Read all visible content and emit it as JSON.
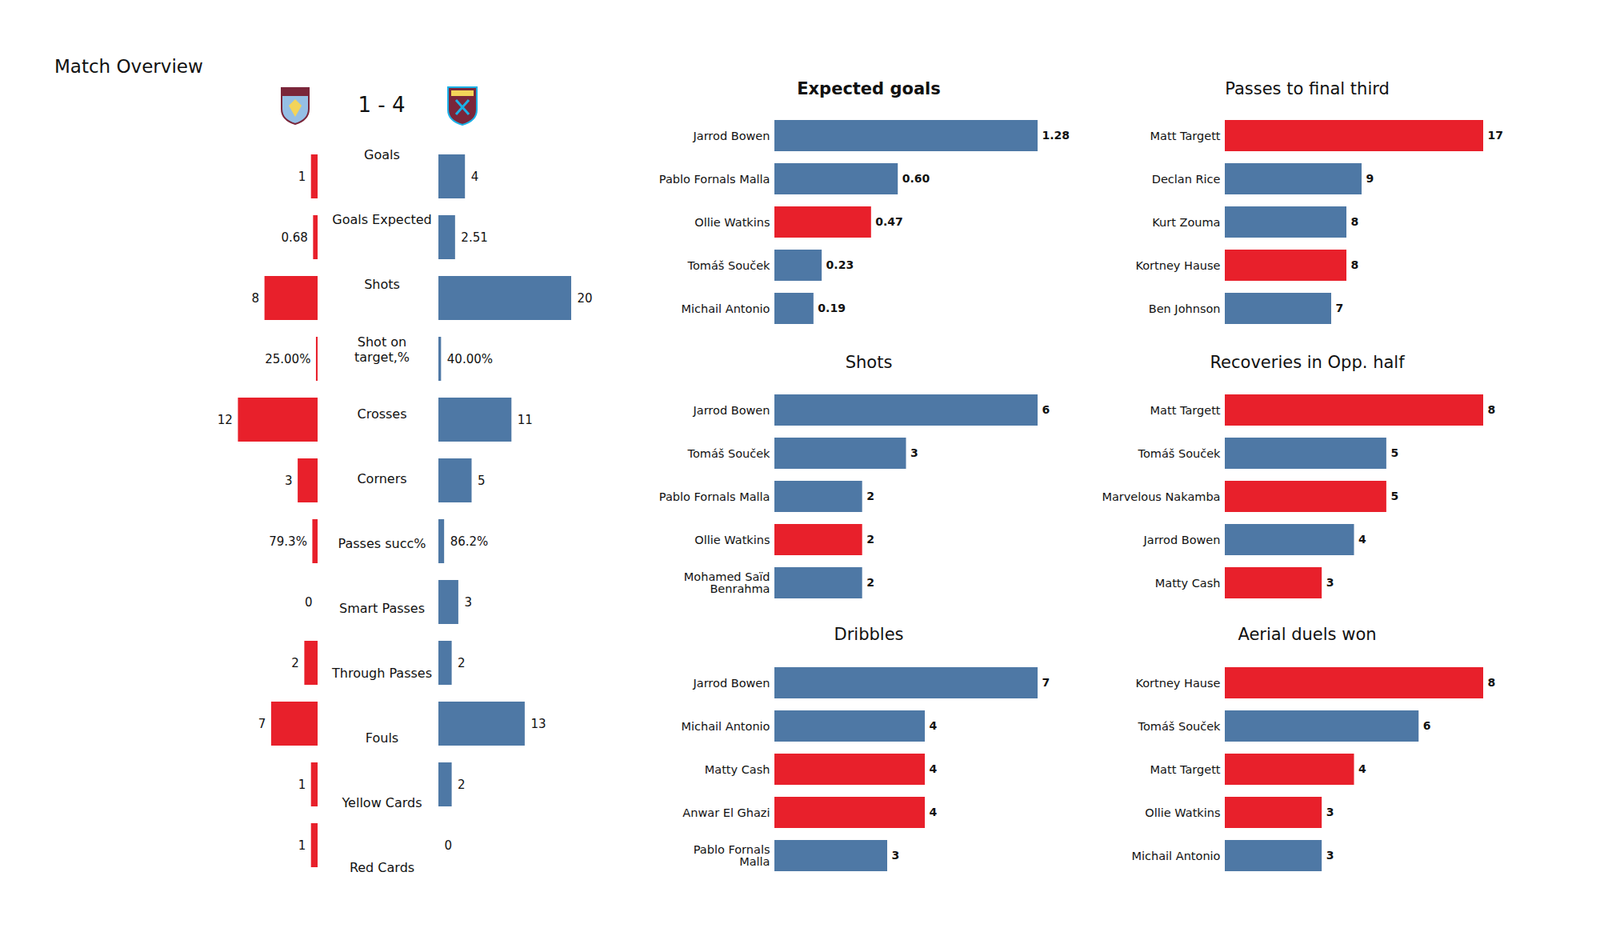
{
  "chart_data": [
    {
      "type": "bar",
      "title": "Match Overview",
      "annotations": [
        "1 - 4"
      ],
      "orientation": "horizontal",
      "data_labels": true,
      "tick_labels": false,
      "categories": [
        "Goals",
        "Goals Expected",
        "Shots",
        "Shot on\ntarget,%",
        "Crosses",
        "Corners",
        "Passes succ%",
        "Smart Passes",
        "Through Passes",
        "Fouls",
        "Yellow Cards",
        "Red Cards"
      ],
      "xlim": [
        0,
        20
      ],
      "series": [
        {
          "color": "#e8202b",
          "values": [
            1,
            0.68,
            8,
            0.25,
            12,
            3,
            0.793,
            0,
            2,
            7,
            1,
            1
          ],
          "value_labels": [
            "1",
            "0.68",
            "8",
            "25.00%",
            "12",
            "3",
            "79.3%",
            "0",
            "2",
            "7",
            "1",
            "1"
          ]
        },
        {
          "color": "#4e78a5",
          "values": [
            4,
            2.51,
            20,
            0.4,
            11,
            5,
            0.862,
            3,
            2,
            13,
            2,
            0
          ],
          "value_labels": [
            "4",
            "2.51",
            "20",
            "40.00%",
            "11",
            "5",
            "86.2%",
            "3",
            "2",
            "13",
            "2",
            "0"
          ]
        }
      ]
    },
    {
      "type": "bar",
      "title": "Expected goals",
      "orientation": "horizontal",
      "data_labels": true,
      "tick_labels": "y",
      "categories": [
        "Jarrod Bowen",
        "Pablo Fornals Malla",
        "Ollie Watkins",
        "Tomáš Souček",
        "Michail Antonio"
      ],
      "values": [
        1.28,
        0.6,
        0.47,
        0.23,
        0.19
      ],
      "value_labels": [
        "1.28",
        "0.60",
        "0.47",
        "0.23",
        "0.19"
      ],
      "colors": [
        "#4e78a5",
        "#4e78a5",
        "#e8202b",
        "#4e78a5",
        "#4e78a5"
      ],
      "xlim": [
        0,
        1.28
      ]
    },
    {
      "type": "bar",
      "title": "Shots",
      "orientation": "horizontal",
      "data_labels": true,
      "tick_labels": "y",
      "categories": [
        "Jarrod Bowen",
        "Tomáš Souček",
        "Pablo Fornals Malla",
        "Ollie Watkins",
        "Mohamed Saïd\nBenrahma"
      ],
      "values": [
        6,
        3,
        2,
        2,
        2
      ],
      "colors": [
        "#4e78a5",
        "#4e78a5",
        "#4e78a5",
        "#e8202b",
        "#4e78a5"
      ],
      "xlim": [
        0,
        6
      ]
    },
    {
      "type": "bar",
      "title": "Dribbles",
      "orientation": "horizontal",
      "data_labels": true,
      "tick_labels": "y",
      "categories": [
        "Jarrod Bowen",
        "Michail Antonio",
        "Matty Cash",
        "Anwar El Ghazi",
        "Pablo Fornals\nMalla"
      ],
      "values": [
        7,
        4,
        4,
        4,
        3
      ],
      "colors": [
        "#4e78a5",
        "#4e78a5",
        "#e8202b",
        "#e8202b",
        "#4e78a5"
      ],
      "xlim": [
        0,
        7
      ]
    },
    {
      "type": "bar",
      "title": "Passes to final third",
      "orientation": "horizontal",
      "data_labels": true,
      "tick_labels": "y",
      "categories": [
        "Matt Targett",
        "Declan Rice",
        "Kurt Zouma",
        "Kortney Hause",
        "Ben Johnson"
      ],
      "values": [
        17,
        9,
        8,
        8,
        7
      ],
      "colors": [
        "#e8202b",
        "#4e78a5",
        "#4e78a5",
        "#e8202b",
        "#4e78a5"
      ],
      "xlim": [
        0,
        17
      ]
    },
    {
      "type": "bar",
      "title": "Recoveries in Opp. half",
      "orientation": "horizontal",
      "data_labels": true,
      "tick_labels": "y",
      "categories": [
        "Matt Targett",
        "Tomáš Souček",
        "Marvelous Nakamba",
        "Jarrod Bowen",
        "Matty Cash"
      ],
      "values": [
        8,
        5,
        5,
        4,
        3
      ],
      "colors": [
        "#e8202b",
        "#4e78a5",
        "#e8202b",
        "#4e78a5",
        "#e8202b"
      ],
      "xlim": [
        0,
        8
      ]
    },
    {
      "type": "bar",
      "title": "Aerial duels won",
      "orientation": "horizontal",
      "data_labels": true,
      "tick_labels": "y",
      "categories": [
        "Kortney Hause",
        "Tomáš Souček",
        "Matt Targett",
        "Ollie Watkins",
        "Michail Antonio"
      ],
      "values": [
        8,
        6,
        4,
        3,
        3
      ],
      "colors": [
        "#e8202b",
        "#4e78a5",
        "#e8202b",
        "#e8202b",
        "#4e78a5"
      ],
      "xlim": [
        0,
        8
      ]
    }
  ]
}
